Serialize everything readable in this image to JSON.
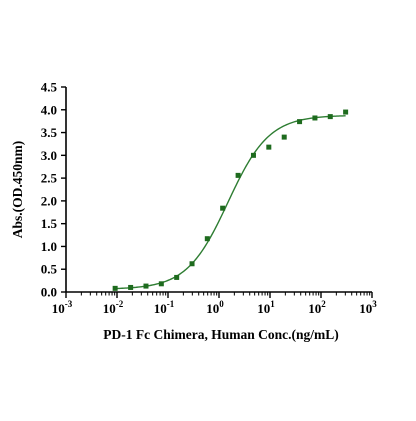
{
  "chart_data": {
    "type": "scatter",
    "title": "",
    "xlabel": "PD-1 Fc Chimera, Human Conc.(ng/mL)",
    "ylabel": "Abs.(OD.450nm)",
    "x_scale": "log",
    "xlim": [
      0.001,
      1000
    ],
    "ylim": [
      0,
      4.5
    ],
    "y_ticks": [
      "0.0",
      "0.5",
      "1.0",
      "1.5",
      "2.0",
      "2.5",
      "3.0",
      "3.5",
      "4.0",
      "4.5"
    ],
    "x_ticks": [
      {
        "base": "10",
        "exp": "-3"
      },
      {
        "base": "10",
        "exp": "-2"
      },
      {
        "base": "10",
        "exp": "-1"
      },
      {
        "base": "10",
        "exp": "0"
      },
      {
        "base": "10",
        "exp": "1"
      },
      {
        "base": "10",
        "exp": "2"
      },
      {
        "base": "10",
        "exp": "3"
      }
    ],
    "grid": false,
    "legend": "none",
    "colors": {
      "points": "#1e6b1e",
      "curve": "#2e7d32",
      "axes": "#000000"
    },
    "series": [
      {
        "x": [
          0.0092,
          0.0185,
          0.037,
          0.074,
          0.148,
          0.296,
          0.59,
          1.18,
          2.37,
          4.74,
          9.48,
          19.0,
          38.0,
          76.0,
          152.0,
          304.0
        ],
        "y": [
          0.08,
          0.1,
          0.13,
          0.18,
          0.32,
          0.62,
          1.17,
          1.84,
          2.56,
          3.0,
          3.18,
          3.4,
          3.74,
          3.82,
          3.85,
          3.95
        ]
      }
    ],
    "fit_curve": {
      "model": "4PL",
      "bottom": 0.06,
      "top": 3.88,
      "ec50": 1.5,
      "hill": 1.08
    }
  }
}
